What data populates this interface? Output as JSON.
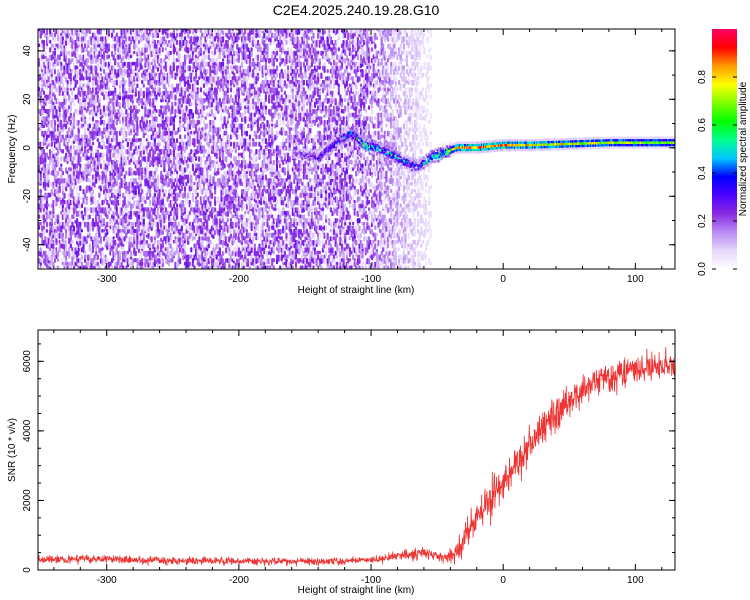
{
  "chart_data": [
    {
      "type": "heatmap",
      "title": "C2E4.2025.240.19.28.G10",
      "xlabel": "Height of straight line (km)",
      "ylabel": "Frequency (Hz)",
      "xlim": [
        -352,
        130
      ],
      "ylim": [
        -50,
        49
      ],
      "x_ticks": [
        -300,
        -200,
        -100,
        0,
        100
      ],
      "x_tick_labels": [
        "-300",
        "-200",
        "-100",
        "0",
        "100"
      ],
      "y_ticks": [
        -40,
        -20,
        0,
        20,
        40
      ],
      "y_tick_labels": [
        "-40",
        "-20",
        "0",
        "20",
        "40"
      ],
      "noise_region_end_km": -55,
      "signal_track": {
        "x": [
          -160,
          -140,
          -125,
          -115,
          -105,
          -95,
          -85,
          -75,
          -65,
          -55,
          -45,
          -35,
          -20,
          0,
          20,
          50,
          80,
          130
        ],
        "freq": [
          -2,
          -4,
          3,
          6,
          1,
          0,
          -3,
          -6,
          -8,
          -4,
          -2,
          0,
          0,
          1,
          1,
          1.5,
          2,
          2
        ],
        "amplitude": [
          0.25,
          0.3,
          0.4,
          0.45,
          0.55,
          0.5,
          0.55,
          0.45,
          0.4,
          0.5,
          0.6,
          0.85,
          0.9,
          0.9,
          0.85,
          0.8,
          0.75,
          0.7
        ]
      },
      "colorbar": {
        "label": "Normalized spectral amplitude",
        "range": [
          0,
          1
        ],
        "ticks": [
          0.0,
          0.2,
          0.4,
          0.6,
          0.8
        ],
        "tick_labels": [
          "0.0",
          "0.2",
          "0.4",
          "0.6",
          "0.8"
        ],
        "colors": [
          "#ffffff",
          "#e6d6fb",
          "#b98af2",
          "#8a2be2",
          "#4b00ff",
          "#0000ff",
          "#00c8ff",
          "#00ff8c",
          "#00ff00",
          "#80ff00",
          "#ffff00",
          "#ff9900",
          "#ff0000",
          "#ff0066"
        ]
      }
    },
    {
      "type": "line",
      "title": "",
      "xlabel": "Height of straight line (km)",
      "ylabel": "SNR (10 * v/v)",
      "xlim": [
        -352,
        130
      ],
      "ylim": [
        0,
        6900
      ],
      "x_ticks": [
        -300,
        -200,
        -100,
        0,
        100
      ],
      "x_tick_labels": [
        "-300",
        "-200",
        "-100",
        "0",
        "100"
      ],
      "y_ticks": [
        0,
        2000,
        4000,
        6000
      ],
      "y_tick_labels": [
        "0",
        "2000",
        "4000",
        "6000"
      ],
      "color": "#ee3333",
      "series": [
        {
          "name": "SNR",
          "x": [
            -352,
            -320,
            -280,
            -240,
            -200,
            -160,
            -120,
            -100,
            -80,
            -60,
            -45,
            -35,
            -25,
            -15,
            -5,
            5,
            15,
            25,
            35,
            45,
            55,
            65,
            75,
            85,
            95,
            105,
            115,
            125,
            130
          ],
          "values": [
            300,
            320,
            290,
            260,
            250,
            250,
            260,
            280,
            400,
            480,
            350,
            500,
            1200,
            1800,
            2300,
            2700,
            3300,
            3800,
            4300,
            4700,
            5000,
            5300,
            5500,
            5600,
            5700,
            5800,
            5900,
            5900,
            5800
          ],
          "noise_amplitude": [
            200,
            200,
            180,
            160,
            150,
            150,
            150,
            150,
            200,
            250,
            200,
            400,
            700,
            800,
            800,
            800,
            800,
            800,
            800,
            700,
            650,
            600,
            600,
            600,
            600,
            600,
            600,
            600,
            600
          ]
        }
      ]
    }
  ]
}
